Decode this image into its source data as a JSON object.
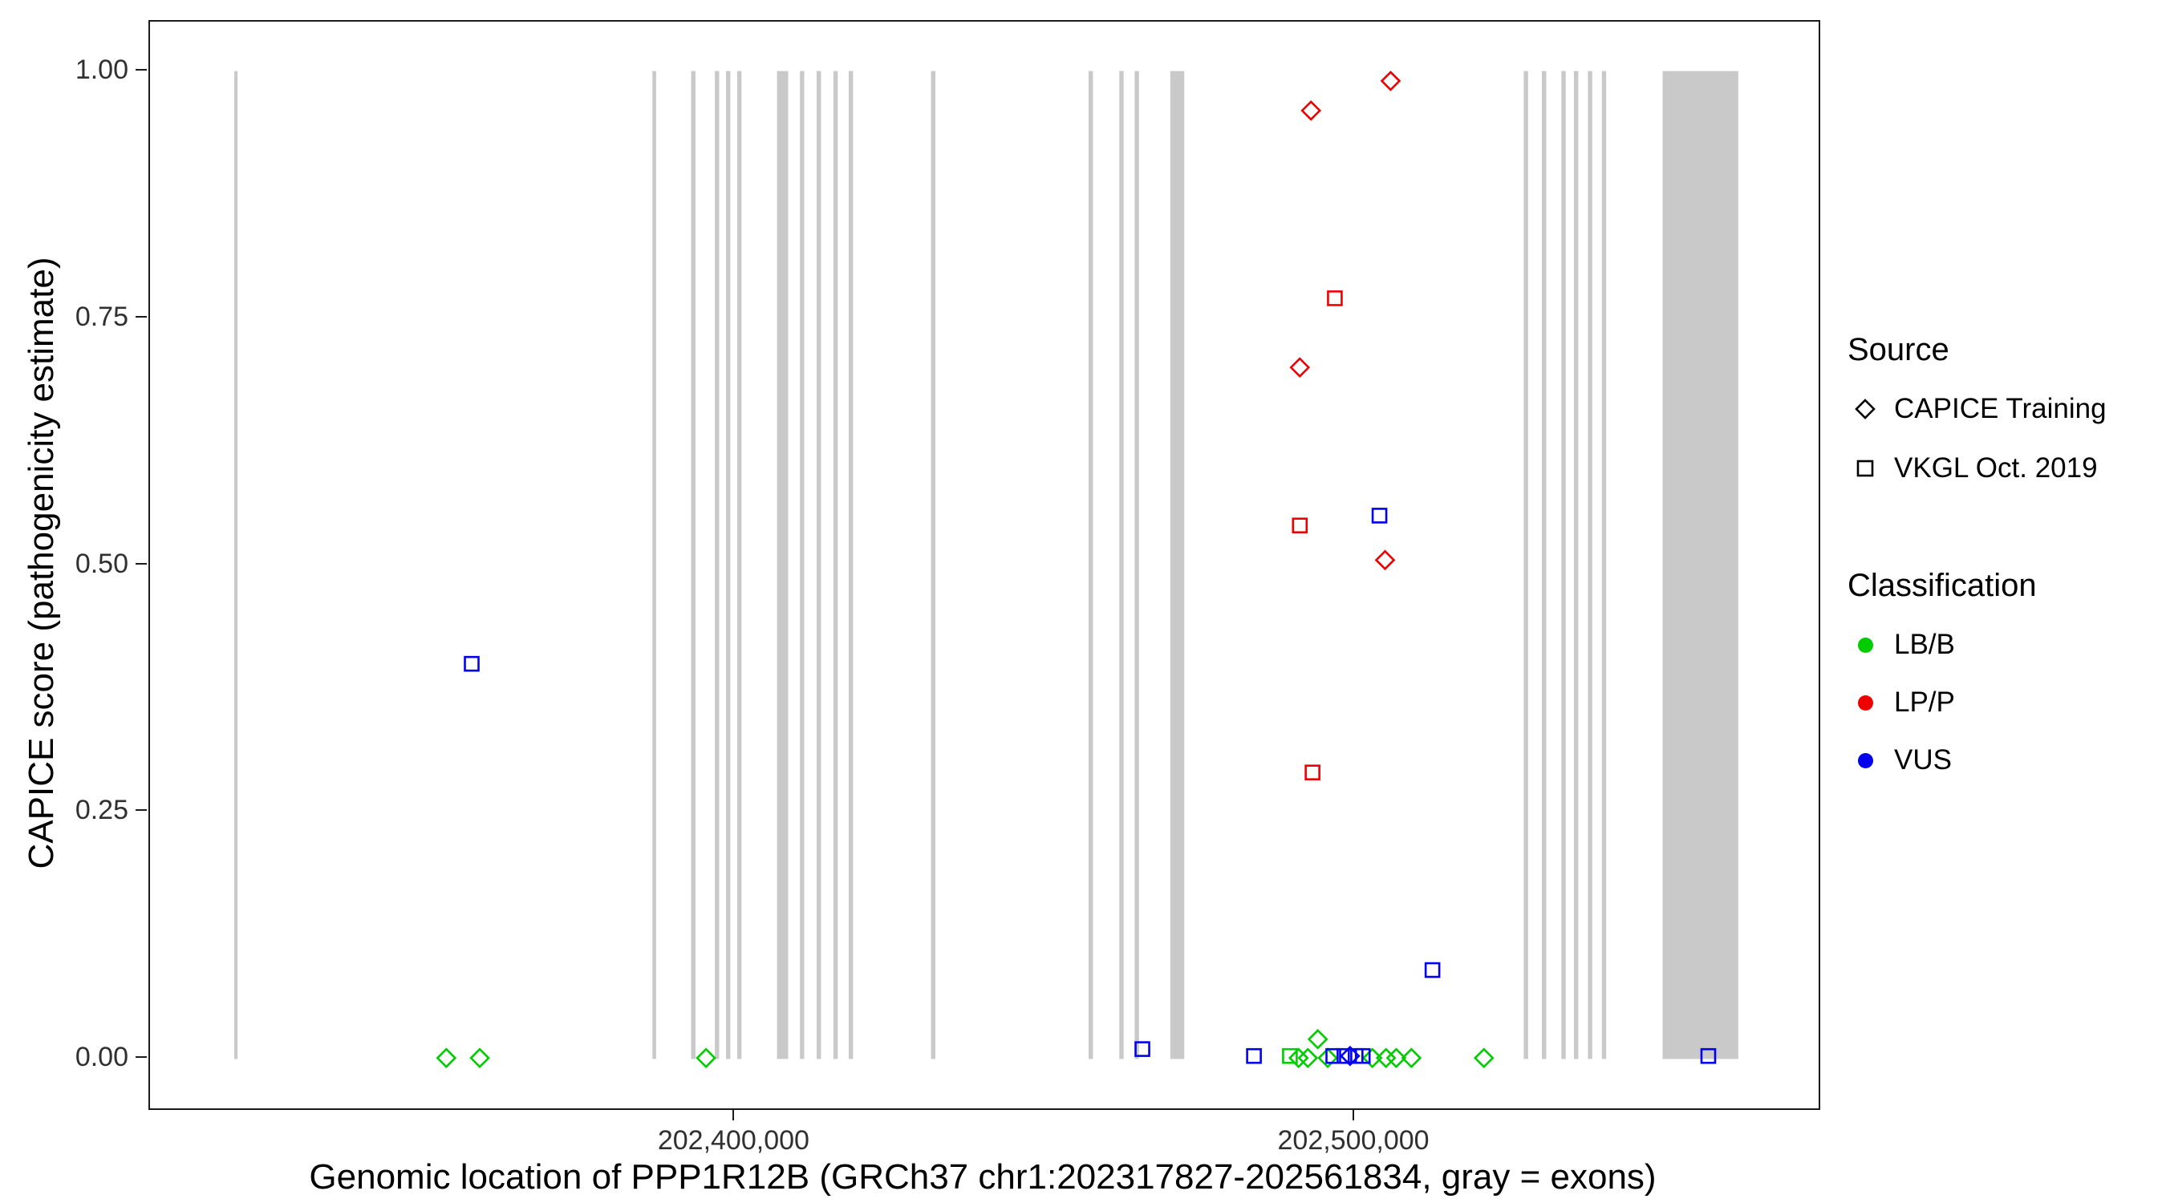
{
  "chart_data": {
    "type": "scatter",
    "title": "",
    "xlabel": "Genomic location of PPP1R12B (GRCh37 chr1:202317827-202561834, gray = exons)",
    "ylabel": "CAPICE score (pathogenicity estimate)",
    "xlim": [
      202305600,
      202574800
    ],
    "ylim": [
      -0.05,
      1.05
    ],
    "grid": false,
    "legend_position": "right",
    "exon_color": "#c9c9c9",
    "x_ticks": [
      {
        "value": 202400000,
        "label": "202,400,000"
      },
      {
        "value": 202500000,
        "label": "202,500,000"
      }
    ],
    "y_ticks": [
      {
        "value": 0.0,
        "label": "0.00"
      },
      {
        "value": 0.25,
        "label": "0.25"
      },
      {
        "value": 0.5,
        "label": "0.50"
      },
      {
        "value": 0.75,
        "label": "0.75"
      },
      {
        "value": 1.0,
        "label": "1.00"
      }
    ],
    "exons": [
      {
        "start": 202319200,
        "end": 202319700
      },
      {
        "start": 202386650,
        "end": 202387250
      },
      {
        "start": 202392900,
        "end": 202393600
      },
      {
        "start": 202396725,
        "end": 202397425
      },
      {
        "start": 202398525,
        "end": 202399225
      },
      {
        "start": 202400325,
        "end": 202401025
      },
      {
        "start": 202406750,
        "end": 202408550
      },
      {
        "start": 202410450,
        "end": 202411150
      },
      {
        "start": 202413150,
        "end": 202413850
      },
      {
        "start": 202415850,
        "end": 202416550
      },
      {
        "start": 202418325,
        "end": 202419025
      },
      {
        "start": 202431600,
        "end": 202432300
      },
      {
        "start": 202457025,
        "end": 202457725
      },
      {
        "start": 202461975,
        "end": 202462675
      },
      {
        "start": 202464450,
        "end": 202465150
      },
      {
        "start": 202470200,
        "end": 202472450
      },
      {
        "start": 202527225,
        "end": 202527925
      },
      {
        "start": 202530150,
        "end": 202530850
      },
      {
        "start": 202533300,
        "end": 202534000
      },
      {
        "start": 202535325,
        "end": 202536025
      },
      {
        "start": 202537575,
        "end": 202538275
      },
      {
        "start": 202539825,
        "end": 202540525
      },
      {
        "start": 202549625,
        "end": 202561834
      }
    ],
    "series": [
      {
        "name": "CAPICE Training / LB/B",
        "source": "CAPICE Training",
        "classification": "LB/B",
        "shape": "diamond",
        "color": "#00cc00",
        "points": [
          [
            202353400,
            0.001
          ],
          [
            202358800,
            0.001
          ],
          [
            202395300,
            0.001
          ],
          [
            202490900,
            0.001
          ],
          [
            202492400,
            0.001
          ],
          [
            202494000,
            0.02
          ],
          [
            202495600,
            0.001
          ],
          [
            202502800,
            0.001
          ],
          [
            202505000,
            0.001
          ],
          [
            202506650,
            0.001
          ],
          [
            202509100,
            0.001
          ],
          [
            202520800,
            0.001
          ]
        ]
      },
      {
        "name": "VKGL Oct. 2019 / LB/B",
        "source": "VKGL Oct. 2019",
        "classification": "LB/B",
        "shape": "square",
        "color": "#00cc00",
        "points": [
          [
            202489500,
            0.003
          ]
        ]
      },
      {
        "name": "CAPICE Training / LP/P",
        "source": "CAPICE Training",
        "classification": "LP/P",
        "shape": "diamond",
        "color": "#ee0000",
        "points": [
          [
            202492900,
            0.96
          ],
          [
            202505750,
            0.99
          ],
          [
            202491100,
            0.7
          ],
          [
            202504850,
            0.505
          ]
        ]
      },
      {
        "name": "VKGL Oct. 2019 / LP/P",
        "source": "VKGL Oct. 2019",
        "classification": "LP/P",
        "shape": "square",
        "color": "#ee0000",
        "points": [
          [
            202496750,
            0.77
          ],
          [
            202491100,
            0.54
          ],
          [
            202493150,
            0.29
          ]
        ]
      },
      {
        "name": "CAPICE Training / VUS",
        "source": "CAPICE Training",
        "classification": "VUS",
        "shape": "diamond",
        "color": "#0000ee",
        "points": [
          [
            202499200,
            0.003
          ]
        ]
      },
      {
        "name": "VKGL Oct. 2019 / VUS",
        "source": "VKGL Oct. 2019",
        "classification": "VUS",
        "shape": "square",
        "color": "#0000ee",
        "points": [
          [
            202357500,
            0.4
          ],
          [
            202503950,
            0.55
          ],
          [
            202512500,
            0.09
          ],
          [
            202465700,
            0.01
          ],
          [
            202483700,
            0.003
          ],
          [
            202496500,
            0.003
          ],
          [
            202498300,
            0.003
          ],
          [
            202500100,
            0.003
          ],
          [
            202501250,
            0.003
          ],
          [
            202557000,
            0.003
          ]
        ]
      }
    ],
    "legend": {
      "source_title": "Source",
      "source_items": [
        {
          "label": "CAPICE Training",
          "shape": "diamond"
        },
        {
          "label": "VKGL Oct. 2019",
          "shape": "square"
        }
      ],
      "classification_title": "Classification",
      "classification_items": [
        {
          "label": "LB/B",
          "color": "#00cc00"
        },
        {
          "label": "LP/P",
          "color": "#ee0000"
        },
        {
          "label": "VUS",
          "color": "#0000ee"
        }
      ]
    }
  }
}
